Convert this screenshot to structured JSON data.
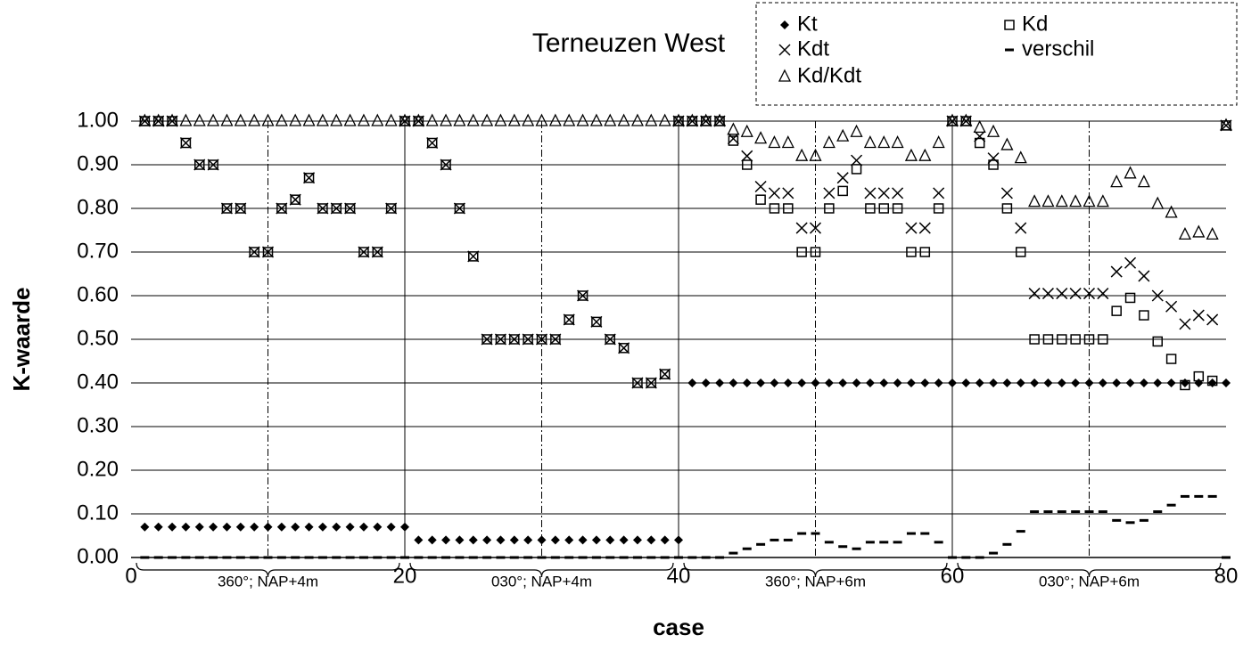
{
  "chart_data": {
    "type": "scatter",
    "title": "Terneuzen West",
    "x_label": "case",
    "y_label": "K-waarde",
    "x": [
      1,
      2,
      3,
      4,
      5,
      6,
      7,
      8,
      9,
      10,
      11,
      12,
      13,
      14,
      15,
      16,
      17,
      18,
      19,
      20,
      21,
      22,
      23,
      24,
      25,
      26,
      27,
      28,
      29,
      30,
      31,
      32,
      33,
      34,
      35,
      36,
      37,
      38,
      39,
      40,
      41,
      42,
      43,
      44,
      45,
      46,
      47,
      48,
      49,
      50,
      51,
      52,
      53,
      54,
      55,
      56,
      57,
      58,
      59,
      60,
      61,
      62,
      63,
      64,
      65,
      66,
      67,
      68,
      69,
      70,
      71,
      72,
      73,
      74,
      75,
      76,
      77,
      78,
      79,
      80
    ],
    "series": [
      {
        "name": "Kt",
        "marker": "diamond",
        "color": "#000000",
        "values": [
          0.07,
          0.07,
          0.07,
          0.07,
          0.07,
          0.07,
          0.07,
          0.07,
          0.07,
          0.07,
          0.07,
          0.07,
          0.07,
          0.07,
          0.07,
          0.07,
          0.07,
          0.07,
          0.07,
          0.07,
          0.04,
          0.04,
          0.04,
          0.04,
          0.04,
          0.04,
          0.04,
          0.04,
          0.04,
          0.04,
          0.04,
          0.04,
          0.04,
          0.04,
          0.04,
          0.04,
          0.04,
          0.04,
          0.04,
          0.04,
          0.4,
          0.4,
          0.4,
          0.4,
          0.4,
          0.4,
          0.4,
          0.4,
          0.4,
          0.4,
          0.4,
          0.4,
          0.4,
          0.4,
          0.4,
          0.4,
          0.4,
          0.4,
          0.4,
          0.4,
          0.4,
          0.4,
          0.4,
          0.4,
          0.4,
          0.4,
          0.4,
          0.4,
          0.4,
          0.4,
          0.4,
          0.4,
          0.4,
          0.4,
          0.4,
          0.4,
          0.4,
          0.4,
          0.4,
          0.4
        ]
      },
      {
        "name": "Kd",
        "marker": "square",
        "color": "#000000",
        "values": [
          1,
          1,
          1,
          0.95,
          0.9,
          0.9,
          0.8,
          0.8,
          0.7,
          0.7,
          0.8,
          0.82,
          0.87,
          0.8,
          0.8,
          0.8,
          0.7,
          0.7,
          0.8,
          1,
          1,
          0.95,
          0.9,
          0.8,
          0.69,
          0.5,
          0.5,
          0.5,
          0.5,
          0.5,
          0.5,
          0.545,
          0.6,
          0.54,
          0.5,
          0.48,
          0.4,
          0.4,
          0.42,
          1,
          1,
          1,
          1,
          0.955,
          0.9,
          0.82,
          0.8,
          0.8,
          0.7,
          0.7,
          0.8,
          0.84,
          0.89,
          0.8,
          0.8,
          0.8,
          0.7,
          0.7,
          0.8,
          1,
          1,
          0.95,
          0.9,
          0.8,
          0.7,
          0.5,
          0.5,
          0.5,
          0.5,
          0.5,
          0.5,
          0.565,
          0.595,
          0.555,
          0.495,
          0.455,
          0.395,
          0.415,
          0.405,
          0.99
        ]
      },
      {
        "name": "Kdt",
        "marker": "cross",
        "color": "#000000",
        "values": [
          1,
          1,
          1,
          0.95,
          0.9,
          0.9,
          0.8,
          0.8,
          0.7,
          0.7,
          0.8,
          0.82,
          0.87,
          0.8,
          0.8,
          0.8,
          0.7,
          0.7,
          0.8,
          1,
          1,
          0.95,
          0.9,
          0.8,
          0.69,
          0.5,
          0.5,
          0.5,
          0.5,
          0.5,
          0.5,
          0.545,
          0.6,
          0.54,
          0.5,
          0.48,
          0.4,
          0.4,
          0.42,
          1,
          1,
          1,
          1,
          0.96,
          0.92,
          0.85,
          0.835,
          0.835,
          0.755,
          0.755,
          0.835,
          0.87,
          0.91,
          0.835,
          0.835,
          0.835,
          0.755,
          0.755,
          0.835,
          1,
          1,
          0.965,
          0.915,
          0.835,
          0.755,
          0.605,
          0.605,
          0.605,
          0.605,
          0.605,
          0.605,
          0.655,
          0.675,
          0.645,
          0.6,
          0.575,
          0.535,
          0.555,
          0.545,
          0.99
        ]
      },
      {
        "name": "verschil",
        "marker": "dash",
        "color": "#000000",
        "values": [
          0,
          0,
          0,
          0,
          0,
          0,
          0,
          0,
          0,
          0,
          0,
          0,
          0,
          0,
          0,
          0,
          0,
          0,
          0,
          0,
          0,
          0,
          0,
          0,
          0,
          0,
          0,
          0,
          0,
          0,
          0,
          0,
          0,
          0,
          0,
          0,
          0,
          0,
          0,
          0,
          0,
          0,
          0,
          0.01,
          0.02,
          0.03,
          0.04,
          0.04,
          0.055,
          0.055,
          0.035,
          0.025,
          0.02,
          0.035,
          0.035,
          0.035,
          0.055,
          0.055,
          0.035,
          0,
          0,
          0,
          0.01,
          0.03,
          0.06,
          0.105,
          0.105,
          0.105,
          0.105,
          0.105,
          0.105,
          0.085,
          0.08,
          0.085,
          0.105,
          0.12,
          0.14,
          0.14,
          0.14,
          0
        ]
      },
      {
        "name": "Kd/Kdt",
        "marker": "triangle",
        "color": "#000000",
        "values": [
          1,
          1,
          1,
          1,
          1,
          1,
          1,
          1,
          1,
          1,
          1,
          1,
          1,
          1,
          1,
          1,
          1,
          1,
          1,
          1,
          1,
          1,
          1,
          1,
          1,
          1,
          1,
          1,
          1,
          1,
          1,
          1,
          1,
          1,
          1,
          1,
          1,
          1,
          1,
          1,
          1,
          1,
          1,
          0.98,
          0.975,
          0.96,
          0.95,
          0.95,
          0.92,
          0.92,
          0.95,
          0.965,
          0.975,
          0.95,
          0.95,
          0.95,
          0.92,
          0.92,
          0.95,
          1,
          1,
          0.985,
          0.975,
          0.945,
          0.915,
          0.815,
          0.815,
          0.815,
          0.815,
          0.815,
          0.815,
          0.86,
          0.88,
          0.86,
          0.81,
          0.79,
          0.74,
          0.745,
          0.74,
          0.99
        ]
      }
    ],
    "xlim": [
      0,
      80
    ],
    "xticks": [
      0,
      20,
      40,
      60,
      80
    ],
    "ylim": [
      0,
      1
    ],
    "yticks": [
      {
        "value": 0,
        "label": "0.00"
      },
      {
        "value": 0.1,
        "label": "0.10"
      },
      {
        "value": 0.2,
        "label": "0.20"
      },
      {
        "value": 0.3,
        "label": "0.30"
      },
      {
        "value": 0.4,
        "label": "0.40"
      },
      {
        "value": 0.5,
        "label": "0.50"
      },
      {
        "value": 0.6,
        "label": "0.60"
      },
      {
        "value": 0.7,
        "label": "0.70"
      },
      {
        "value": 0.8,
        "label": "0.80"
      },
      {
        "value": 0.9,
        "label": "0.90"
      },
      {
        "value": 1,
        "label": "1.00"
      }
    ],
    "grid": true,
    "legend": "top-right",
    "annotations": [
      "360°; NAP+4m",
      "030°; NAP+4m",
      "360°; NAP+6m",
      "030°; NAP+6m"
    ]
  }
}
